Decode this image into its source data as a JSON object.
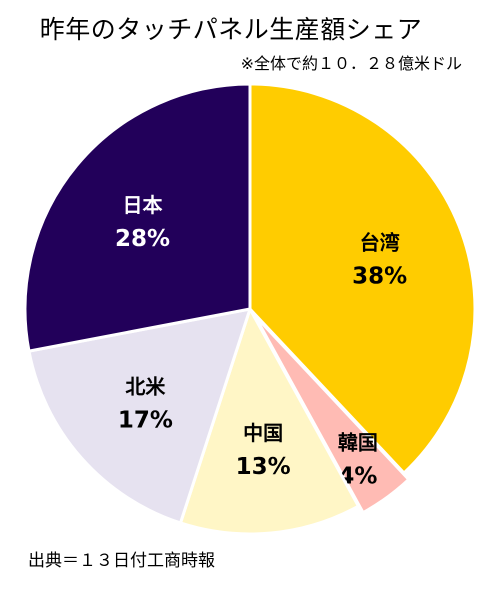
{
  "chart_data": {
    "type": "pie",
    "title": "昨年のタッチパネル生産額シェア",
    "subtitle": "※全体で約１０．２８億米ドル",
    "source": "出典＝１３日付工商時報",
    "slices": [
      {
        "label": "台湾",
        "value": 38,
        "display": "38%",
        "color": "#FFCC00",
        "text_color": "#000000",
        "offset": 0
      },
      {
        "label": "韓国",
        "value": 4,
        "display": "4%",
        "color": "#FFBBB4",
        "text_color": "#000000",
        "offset": 8
      },
      {
        "label": "中国",
        "value": 13,
        "display": "13%",
        "color": "#FFF6C6",
        "text_color": "#000000",
        "offset": 0
      },
      {
        "label": "北米",
        "value": 17,
        "display": "17%",
        "color": "#E6E2F0",
        "text_color": "#000000",
        "offset": 0
      },
      {
        "label": "日本",
        "value": 28,
        "display": "28%",
        "color": "#22005A",
        "text_color": "#FFFFFF",
        "offset": 0
      }
    ]
  }
}
